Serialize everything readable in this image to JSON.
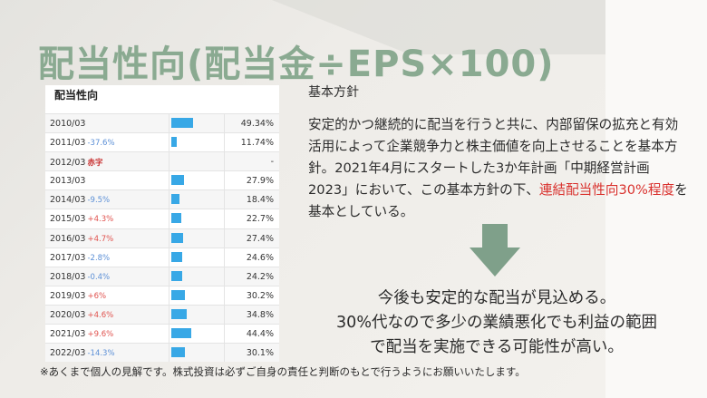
{
  "slide": {
    "title": "配当性向(配当金÷EPS×100)",
    "table": {
      "heading": "配当性向",
      "rows": [
        {
          "year": "2010/03",
          "change": "",
          "change_type": "none",
          "value": "49.34%",
          "ratio": 49.34
        },
        {
          "year": "2011/03",
          "change": "-37.6%",
          "change_type": "neg",
          "value": "11.74%",
          "ratio": 11.74
        },
        {
          "year": "2012/03",
          "change": "赤字",
          "change_type": "red",
          "value": "-",
          "ratio": 0
        },
        {
          "year": "2013/03",
          "change": "",
          "change_type": "none",
          "value": "27.9%",
          "ratio": 27.9
        },
        {
          "year": "2014/03",
          "change": "-9.5%",
          "change_type": "neg",
          "value": "18.4%",
          "ratio": 18.4
        },
        {
          "year": "2015/03",
          "change": "+4.3%",
          "change_type": "pos",
          "value": "22.7%",
          "ratio": 22.7
        },
        {
          "year": "2016/03",
          "change": "+4.7%",
          "change_type": "pos",
          "value": "27.4%",
          "ratio": 27.4
        },
        {
          "year": "2017/03",
          "change": "-2.8%",
          "change_type": "neg",
          "value": "24.6%",
          "ratio": 24.6
        },
        {
          "year": "2018/03",
          "change": "-0.4%",
          "change_type": "neg",
          "value": "24.2%",
          "ratio": 24.2
        },
        {
          "year": "2019/03",
          "change": "+6%",
          "change_type": "pos",
          "value": "30.2%",
          "ratio": 30.2
        },
        {
          "year": "2020/03",
          "change": "+4.6%",
          "change_type": "pos",
          "value": "34.8%",
          "ratio": 34.8
        },
        {
          "year": "2021/03",
          "change": "+9.6%",
          "change_type": "pos",
          "value": "44.4%",
          "ratio": 44.4
        },
        {
          "year": "2022/03",
          "change": "-14.3%",
          "change_type": "neg",
          "value": "30.1%",
          "ratio": 30.1
        }
      ]
    },
    "policy": {
      "title": "基本方針",
      "body_part1": "安定的かつ継続的に配当を行うと共に、内部留保の拡充と有効活用によって企業競争力と株主価値を向上させることを基本方針。2021年4月にスタートした3か年計画「中期経営計画2023」において、この基本方針の下、",
      "highlight": "連結配当性向30%程度",
      "body_part2": "を基本としている。"
    },
    "conclusion": {
      "line1": "今後も安定的な配当が見込める。",
      "line2": "30%代なので多少の業績悪化でも利益の範囲",
      "line3": "で配当を実施できる可能性が高い。"
    },
    "disclaimer": "※あくまで個人の見解です。株式投資は必ずご自身の責任と判断のもとで行うようにお願いいたします。",
    "colors": {
      "title": "#8aaa91",
      "arrow": "#7fa08a",
      "bar": "#38a8e6",
      "highlight": "#d9302c",
      "negative_change": "#5b8fd6",
      "positive_change": "#e0514d"
    },
    "icons": [
      "down-arrow-icon"
    ]
  }
}
